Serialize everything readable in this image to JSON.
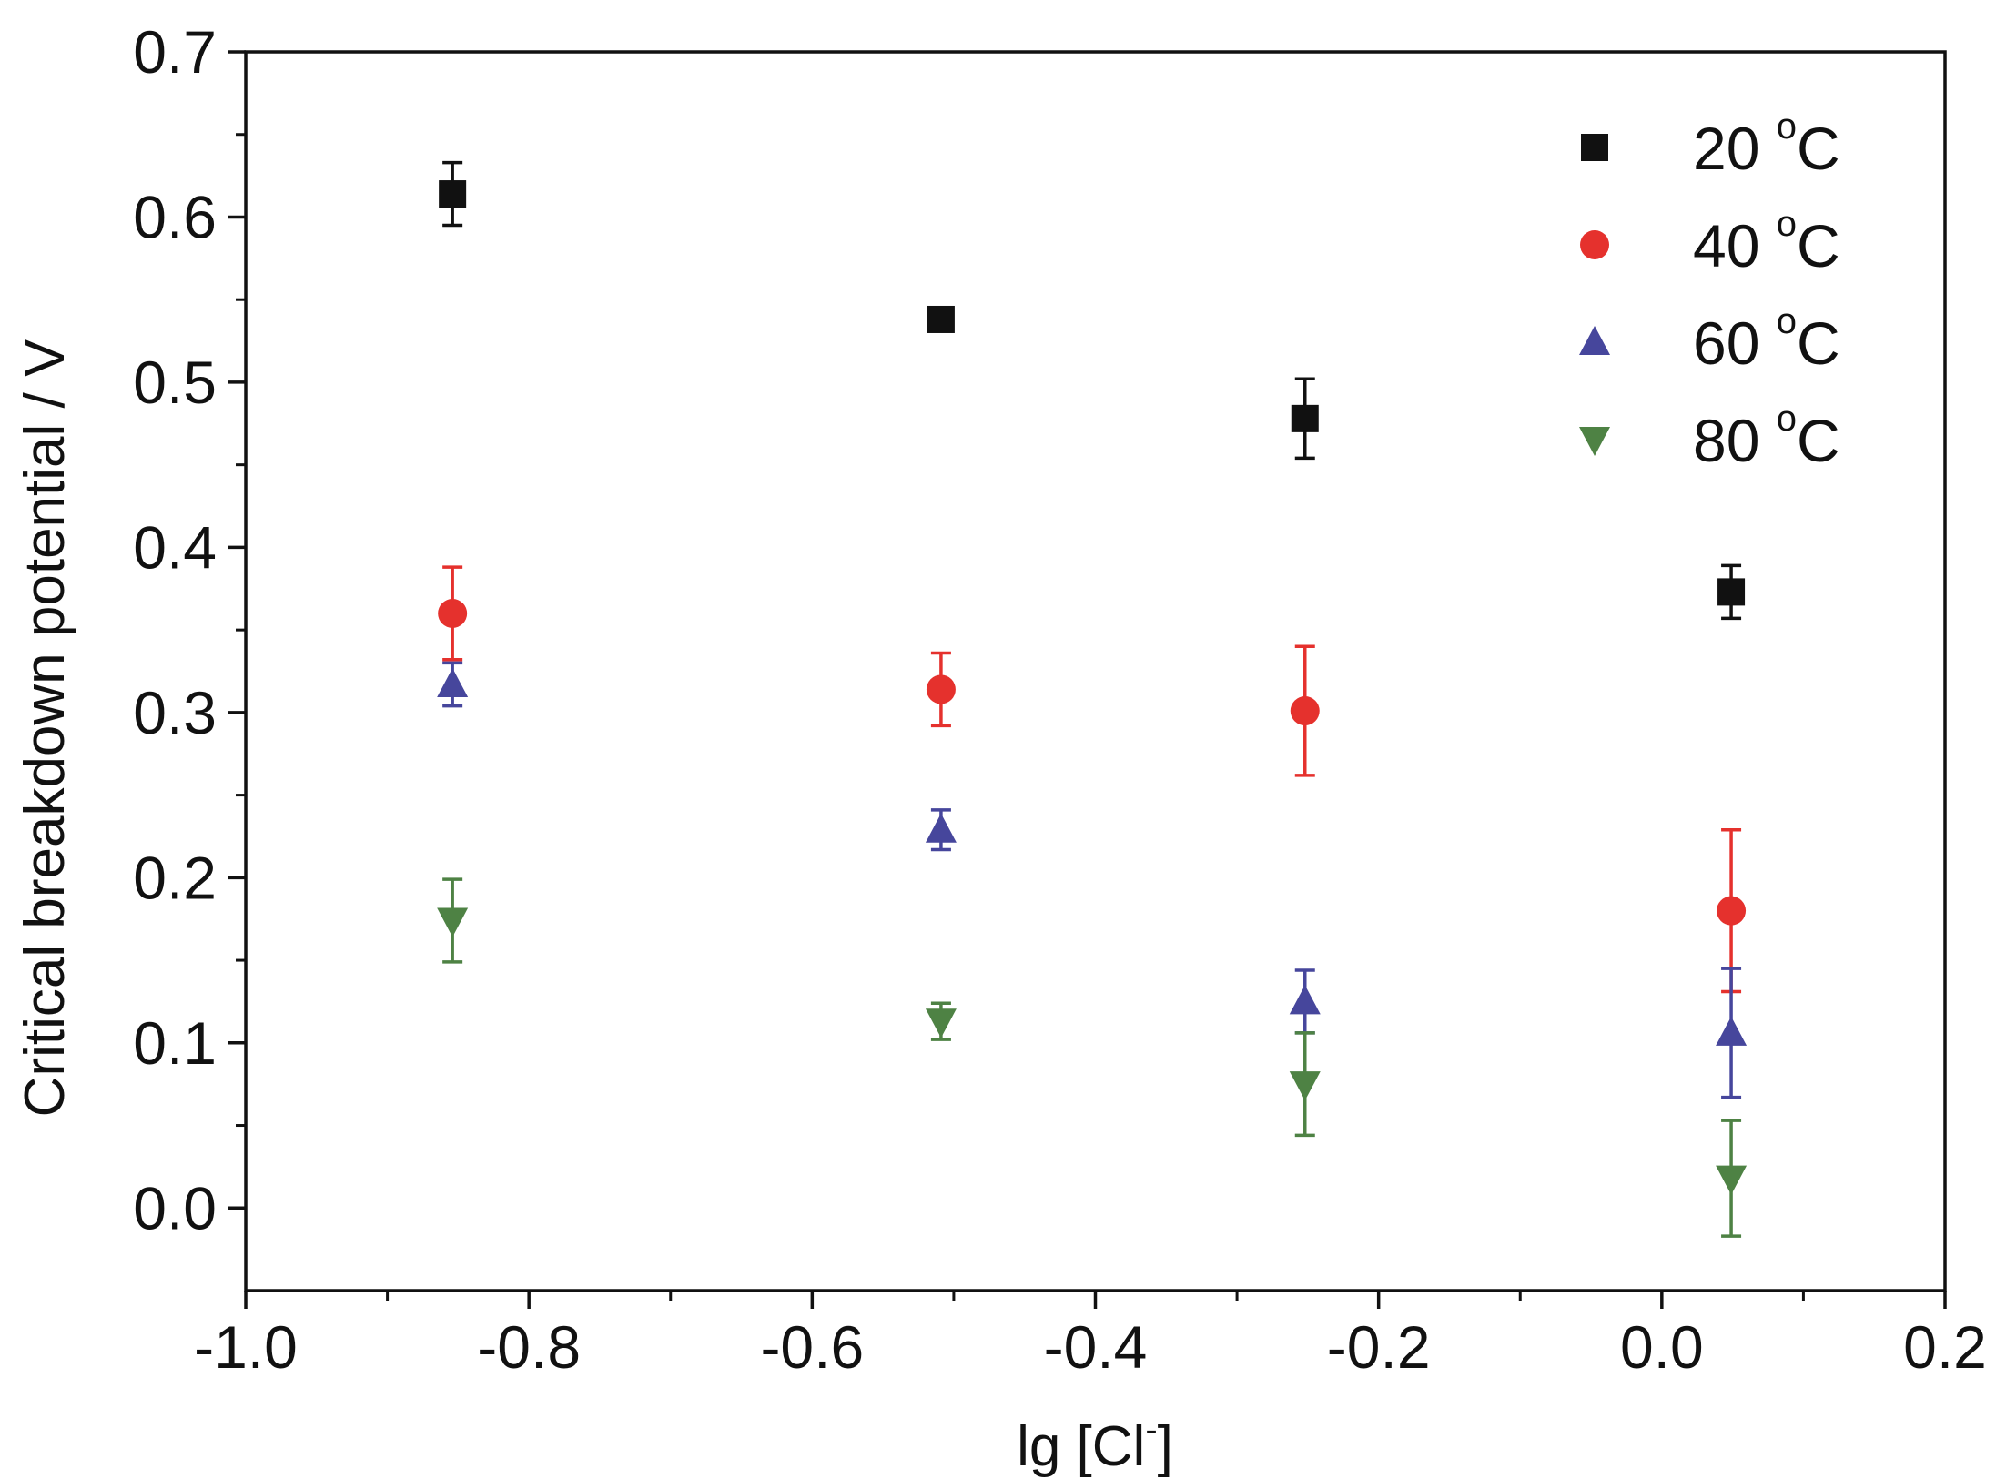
{
  "chart_data": {
    "type": "scatter",
    "title": "",
    "xlabel": "lg [Cl",
    "xlabel_superscript": "-",
    "xlabel_suffix": "]",
    "ylabel": "Critical breakdown potential / V",
    "xlim": [
      -1.0,
      0.2
    ],
    "ylim": [
      -0.05,
      0.7
    ],
    "x_ticks": [
      "-1.0",
      "-0.8",
      "-0.6",
      "-0.4",
      "-0.2",
      "0.0",
      "0.2"
    ],
    "y_ticks": [
      "0.0",
      "0.1",
      "0.2",
      "0.3",
      "0.4",
      "0.5",
      "0.6",
      "0.7"
    ],
    "legend_position": "top-right",
    "grid": false,
    "series": [
      {
        "name": "20",
        "name_superscript": "o",
        "name_suffix": "C",
        "marker": "square",
        "color": "#111111",
        "x": [
          -0.854,
          -0.509,
          -0.252,
          0.049
        ],
        "y": [
          0.614,
          0.538,
          0.478,
          0.373
        ],
        "error": [
          0.019,
          0.004,
          0.024,
          0.016
        ]
      },
      {
        "name": "40",
        "name_superscript": "o",
        "name_suffix": "C",
        "marker": "circle",
        "color": "#e5312d",
        "x": [
          -0.854,
          -0.509,
          -0.252,
          0.049
        ],
        "y": [
          0.36,
          0.314,
          0.301,
          0.18
        ],
        "error": [
          0.028,
          0.022,
          0.039,
          0.049
        ]
      },
      {
        "name": "60",
        "name_superscript": "o",
        "name_suffix": "C",
        "marker": "triangle-up",
        "color": "#46469c",
        "x": [
          -0.854,
          -0.509,
          -0.252,
          0.049
        ],
        "y": [
          0.317,
          0.229,
          0.125,
          0.106
        ],
        "error": [
          0.013,
          0.012,
          0.019,
          0.039
        ]
      },
      {
        "name": "80",
        "name_superscript": "o",
        "name_suffix": "C",
        "marker": "triangle-down",
        "color": "#4e8244",
        "x": [
          -0.854,
          -0.509,
          -0.252,
          0.049
        ],
        "y": [
          0.174,
          0.113,
          0.075,
          0.018
        ],
        "error": [
          0.025,
          0.011,
          0.031,
          0.035
        ]
      }
    ]
  }
}
